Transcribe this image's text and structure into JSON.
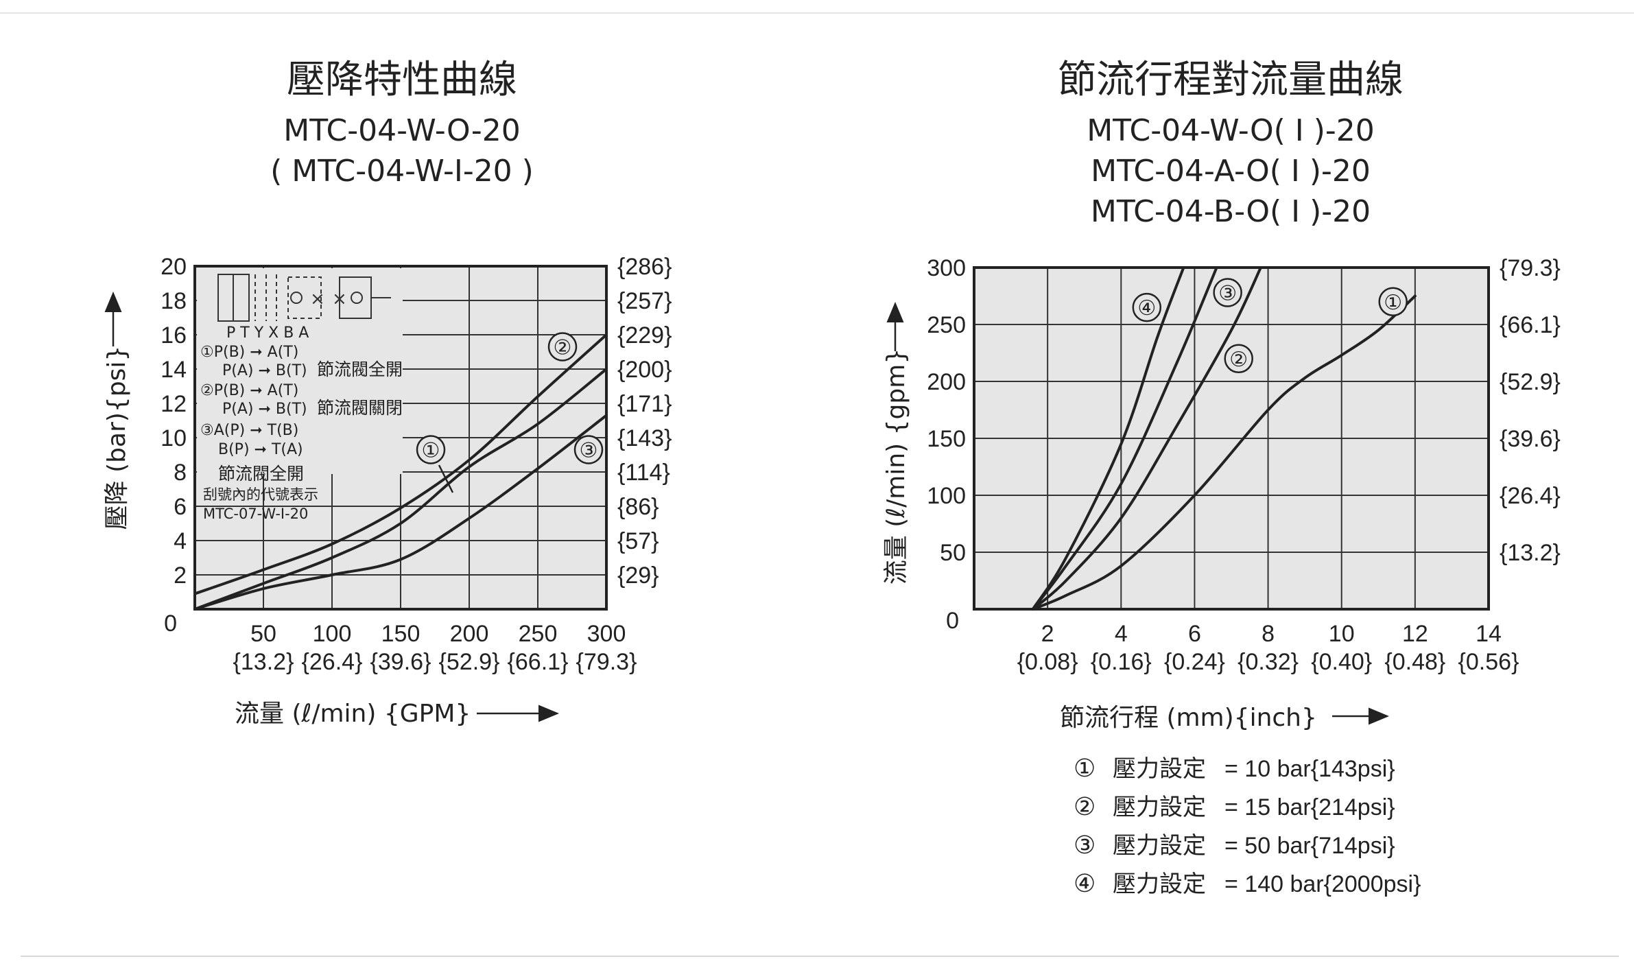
{
  "charts": [
    {
      "title": "壓降特性曲線",
      "subtitle_1": "MTC-04-W-O-20",
      "subtitle_2": "( MTC-04-W-I-20 )",
      "ylabel": "壓降 (bar){psi}",
      "xlabel": "流量 (ℓ/min) {GPM}",
      "zero_label": "0",
      "diagram": {
        "ports": "P T Y X   B   A",
        "line1a": "①P(B) ➞ A(T)",
        "line1b": "P(A) ➞ B(T)",
        "note1": "節流閥全開",
        "line2a": "②P(B) ➞ A(T)",
        "line2b": "P(A) ➞ B(T)",
        "note2": "節流閥關閉",
        "line3a": "③A(P) ➞ T(B)",
        "line3b": "B(P) ➞ T(A)",
        "note3": "節流閥全開",
        "note4": "刮號內的代號表示",
        "note5": "MTC-07-W-I-20"
      }
    },
    {
      "title": "節流行程對流量曲線",
      "subtitle_1": "MTC-04-W-O( I )-20",
      "subtitle_2": "MTC-04-A-O( I )-20",
      "subtitle_3": "MTC-04-B-O( I )-20",
      "ylabel": "流量 (ℓ/min) {gpm}",
      "xlabel": "節流行程 (mm){inch}",
      "zero_label": "0",
      "legend": [
        {
          "mark": "①",
          "label": "壓力設定",
          "value": "= 10 bar{143psi}"
        },
        {
          "mark": "②",
          "label": "壓力設定",
          "value": "= 15 bar{214psi}"
        },
        {
          "mark": "③",
          "label": "壓力設定",
          "value": "= 50 bar{714psi}"
        },
        {
          "mark": "④",
          "label": "壓力設定",
          "value": "= 140 bar{2000psi}"
        }
      ]
    }
  ],
  "chart_data": [
    {
      "type": "line",
      "title": "壓降特性曲線",
      "xlabel": "流量 (ℓ/min) {GPM}",
      "ylabel": "壓降 (bar){psi}",
      "xlim": [
        0,
        300
      ],
      "ylim": [
        0,
        20
      ],
      "x_ticks": [
        50,
        100,
        150,
        200,
        250,
        300
      ],
      "x_ticks_alt": [
        "{13.2}",
        "{26.4}",
        "{39.6}",
        "{52.9}",
        "{66.1}",
        "{79.3}"
      ],
      "y_ticks": [
        2,
        4,
        6,
        8,
        10,
        12,
        14,
        16,
        18,
        20
      ],
      "y_ticks_alt": [
        "{29}",
        "{57}",
        "{86}",
        "{114}",
        "{143}",
        "{171}",
        "{200}",
        "{229}",
        "{257}",
        "{286}"
      ],
      "grid": true,
      "series": [
        {
          "name": "①",
          "x": [
            0,
            50,
            100,
            150,
            200,
            250,
            300
          ],
          "y": [
            0,
            1.5,
            3,
            5,
            8.3,
            10.8,
            14
          ]
        },
        {
          "name": "②",
          "x": [
            0,
            50,
            100,
            150,
            200,
            250,
            300
          ],
          "y": [
            0.9,
            2.3,
            3.8,
            5.9,
            8.7,
            12.4,
            16
          ]
        },
        {
          "name": "③",
          "x": [
            0,
            50,
            100,
            150,
            200,
            250,
            300
          ],
          "y": [
            0,
            1.2,
            2.0,
            2.9,
            5.3,
            8.2,
            11.3
          ]
        }
      ]
    },
    {
      "type": "line",
      "title": "節流行程對流量曲線",
      "xlabel": "節流行程 (mm){inch}",
      "ylabel": "流量 (ℓ/min) {gpm}",
      "xlim": [
        0,
        14
      ],
      "ylim": [
        0,
        300
      ],
      "x_ticks": [
        2,
        4,
        6,
        8,
        10,
        12,
        14
      ],
      "x_ticks_alt": [
        "{0.08}",
        "{0.16}",
        "{0.24}",
        "{0.32}",
        "{0.40}",
        "{0.48}",
        "{0.56}"
      ],
      "y_ticks": [
        50,
        100,
        150,
        200,
        250,
        300
      ],
      "y_ticks_alt": [
        "{13.2}",
        "{26.4}",
        "{39.6}",
        "{52.9}",
        "{66.1}",
        "{79.3}"
      ],
      "grid": true,
      "series": [
        {
          "name": "①",
          "x": [
            1.6,
            2.5,
            4,
            6,
            8,
            9,
            10,
            11,
            12
          ],
          "y": [
            0,
            12,
            38,
            100,
            175,
            203,
            223,
            245,
            275
          ]
        },
        {
          "name": "②",
          "x": [
            1.6,
            2.5,
            4,
            5.5,
            7,
            7.8
          ],
          "y": [
            0,
            25,
            80,
            160,
            245,
            300
          ]
        },
        {
          "name": "③",
          "x": [
            1.6,
            2.5,
            4,
            5.5,
            6.6
          ],
          "y": [
            0,
            38,
            110,
            215,
            300
          ]
        },
        {
          "name": "④",
          "x": [
            1.6,
            2.5,
            4,
            5,
            5.7
          ],
          "y": [
            0,
            45,
            145,
            240,
            300
          ]
        }
      ]
    }
  ]
}
